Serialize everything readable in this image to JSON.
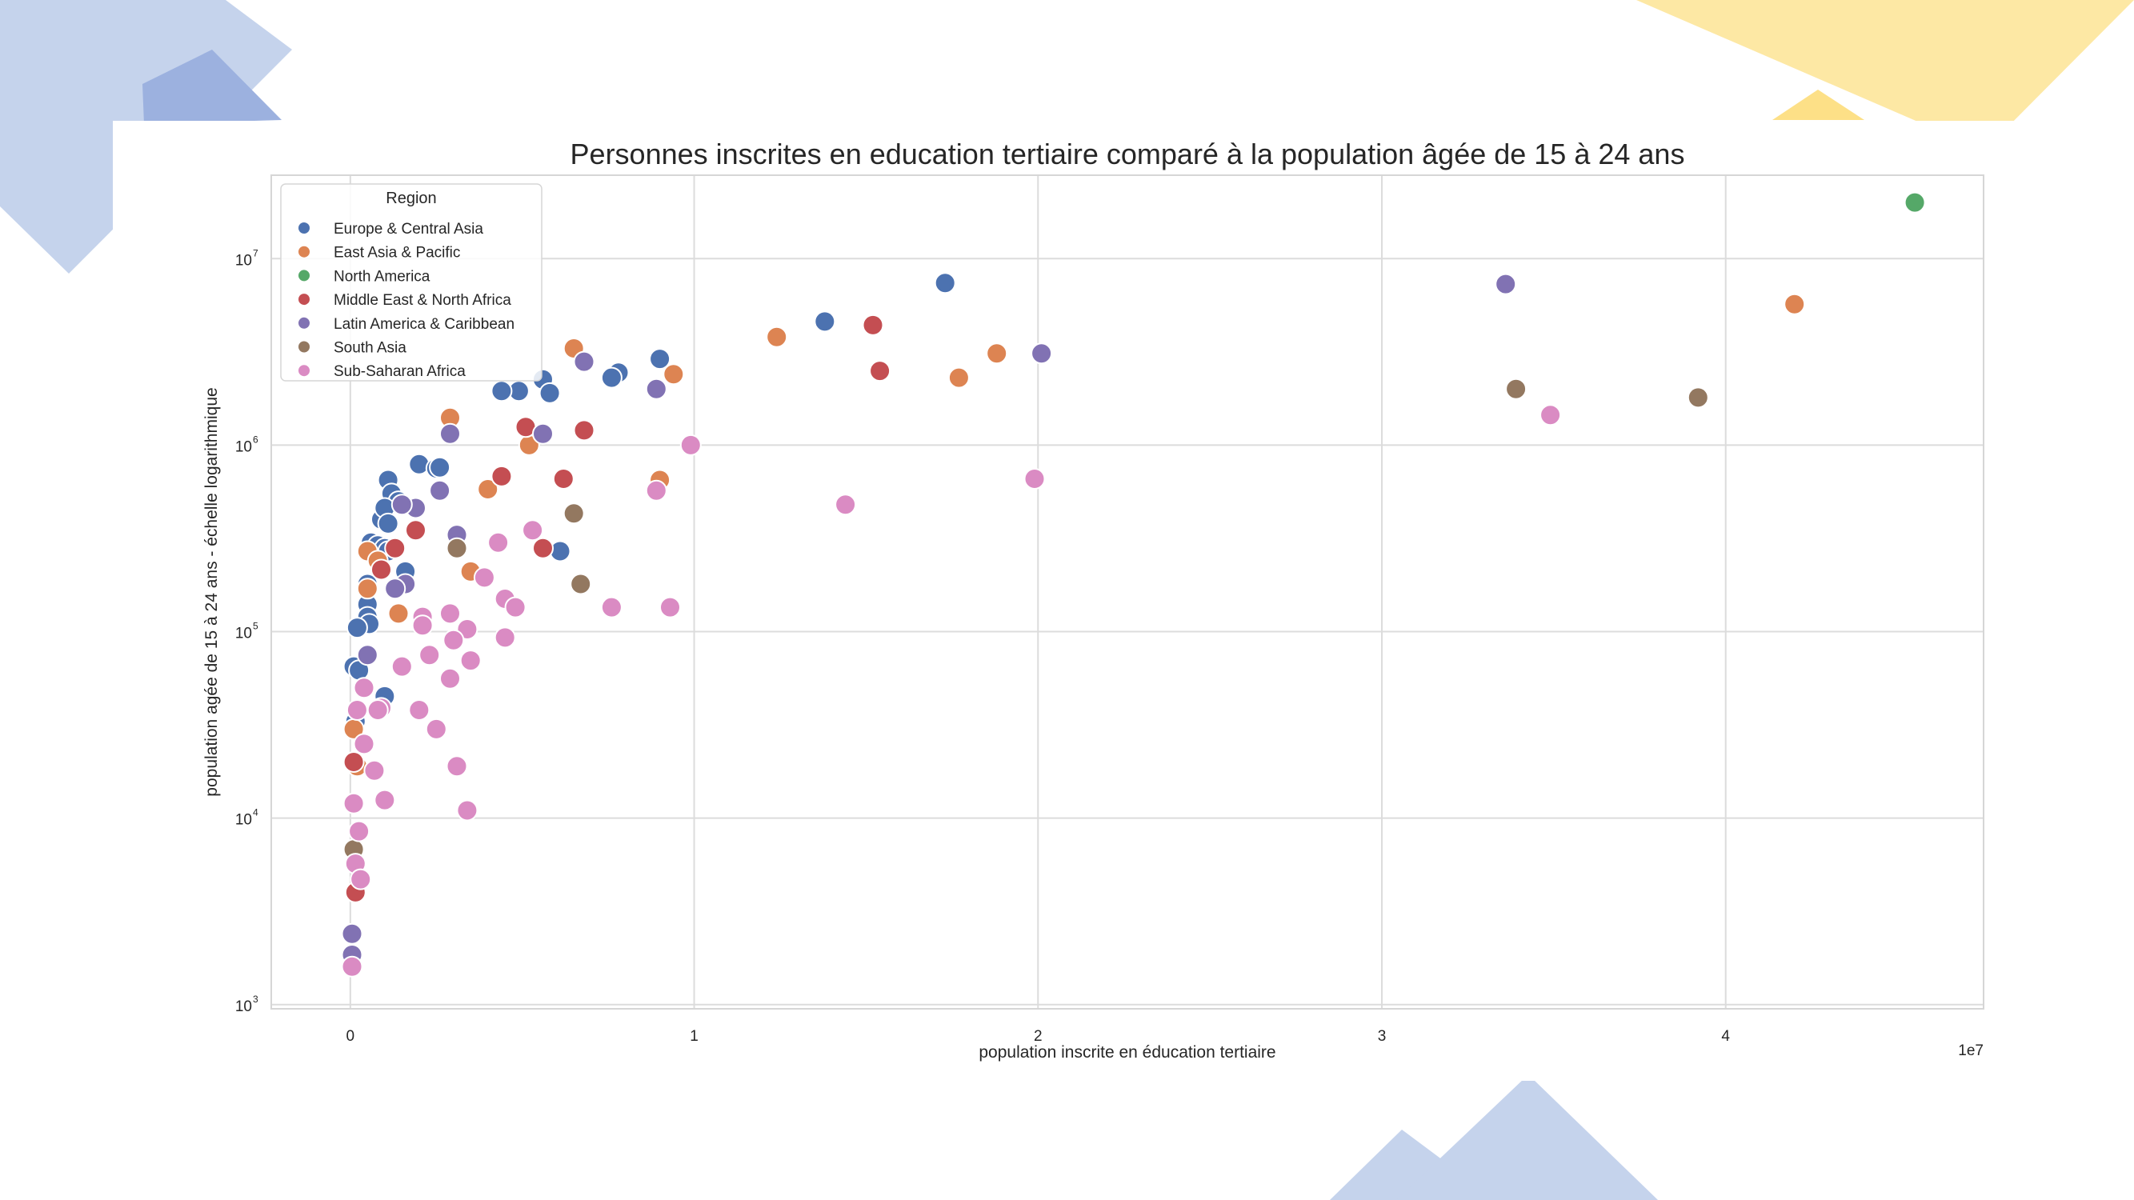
{
  "colors": {
    "deco_blue": "#c5d3ec",
    "deco_blue_dark": "#9cb1df",
    "deco_yellow": "#fde8a4",
    "deco_yellow_dark": "#fde087",
    "grid": "#dcdcdc",
    "axes_border": "#d6d6d6",
    "text": "#262626"
  },
  "chart_data": {
    "type": "scatter",
    "title": "Personnes inscrites en education tertiaire comparé à la population âgée de 15 à 24 ans",
    "xlabel": "population inscrite en éducation tertiaire",
    "ylabel": "population agée de 15 à 24 ans - échelle logarithmique",
    "x_offset_text": "1e7",
    "xlim": [
      -2300000,
      47500000
    ],
    "ylim": [
      950,
      28000000
    ],
    "yscale": "log",
    "x_ticks": [
      {
        "value": 0,
        "label": "0"
      },
      {
        "value": 10000000,
        "label": "1"
      },
      {
        "value": 20000000,
        "label": "2"
      },
      {
        "value": 30000000,
        "label": "3"
      },
      {
        "value": 40000000,
        "label": "4"
      }
    ],
    "y_ticks": [
      {
        "value": 1000,
        "base": "10",
        "exp": "3"
      },
      {
        "value": 10000,
        "base": "10",
        "exp": "4"
      },
      {
        "value": 100000,
        "base": "10",
        "exp": "5"
      },
      {
        "value": 1000000,
        "base": "10",
        "exp": "6"
      },
      {
        "value": 10000000,
        "base": "10",
        "exp": "7"
      }
    ],
    "grid": true,
    "legend": {
      "title": "Region",
      "placement": "top-left"
    },
    "series": [
      {
        "name": "Europe & Central Asia",
        "color": "#4c72b0",
        "points": [
          [
            17300000,
            7400000
          ],
          [
            13800000,
            4600000
          ],
          [
            9000000,
            2900000
          ],
          [
            7800000,
            2450000
          ],
          [
            7600000,
            2300000
          ],
          [
            5600000,
            2250000
          ],
          [
            4900000,
            1950000
          ],
          [
            4400000,
            1950000
          ],
          [
            5800000,
            1900000
          ],
          [
            2000000,
            790000
          ],
          [
            2500000,
            750000
          ],
          [
            2600000,
            760000
          ],
          [
            1100000,
            650000
          ],
          [
            1200000,
            550000
          ],
          [
            1400000,
            500000
          ],
          [
            900000,
            400000
          ],
          [
            1000000,
            460000
          ],
          [
            1100000,
            380000
          ],
          [
            600000,
            300000
          ],
          [
            800000,
            290000
          ],
          [
            1000000,
            280000
          ],
          [
            1100000,
            270000
          ],
          [
            6100000,
            270000
          ],
          [
            1600000,
            210000
          ],
          [
            500000,
            180000
          ],
          [
            500000,
            140000
          ],
          [
            500000,
            120000
          ],
          [
            550000,
            110000
          ],
          [
            200000,
            105000
          ],
          [
            100000,
            65000
          ],
          [
            250000,
            62000
          ],
          [
            1000000,
            45000
          ],
          [
            150000,
            33000
          ]
        ]
      },
      {
        "name": "East Asia & Pacific",
        "color": "#dd8452",
        "points": [
          [
            42000000,
            5700000
          ],
          [
            6500000,
            3300000
          ],
          [
            12400000,
            3800000
          ],
          [
            18800000,
            3100000
          ],
          [
            9400000,
            2400000
          ],
          [
            17700000,
            2300000
          ],
          [
            2900000,
            1400000
          ],
          [
            5200000,
            1000000
          ],
          [
            9000000,
            650000
          ],
          [
            4000000,
            580000
          ],
          [
            500000,
            270000
          ],
          [
            800000,
            240000
          ],
          [
            3500000,
            210000
          ],
          [
            500000,
            170000
          ],
          [
            1400000,
            125000
          ],
          [
            100000,
            30000
          ],
          [
            200000,
            19000
          ]
        ]
      },
      {
        "name": "North America",
        "color": "#55a868",
        "points": [
          [
            45500000,
            20000000
          ]
        ]
      },
      {
        "name": "Middle East & North Africa",
        "color": "#c44e52",
        "points": [
          [
            15200000,
            4400000
          ],
          [
            15400000,
            2500000
          ],
          [
            5100000,
            1250000
          ],
          [
            6800000,
            1200000
          ],
          [
            4400000,
            680000
          ],
          [
            6200000,
            660000
          ],
          [
            1900000,
            350000
          ],
          [
            5600000,
            280000
          ],
          [
            1300000,
            280000
          ],
          [
            900000,
            215000
          ],
          [
            100000,
            20000
          ],
          [
            150000,
            4000
          ]
        ]
      },
      {
        "name": "Latin America & Caribbean",
        "color": "#8172b3",
        "points": [
          [
            33600000,
            7300000
          ],
          [
            20100000,
            3100000
          ],
          [
            6800000,
            2800000
          ],
          [
            8900000,
            2000000
          ],
          [
            2900000,
            1150000
          ],
          [
            5600000,
            1150000
          ],
          [
            2600000,
            570000
          ],
          [
            1900000,
            460000
          ],
          [
            1500000,
            480000
          ],
          [
            3100000,
            330000
          ],
          [
            1600000,
            180000
          ],
          [
            1300000,
            170000
          ],
          [
            500000,
            75000
          ],
          [
            50000,
            2400
          ],
          [
            50000,
            1850
          ]
        ]
      },
      {
        "name": "South Asia",
        "color": "#937860",
        "points": [
          [
            33900000,
            2000000
          ],
          [
            39200000,
            1800000
          ],
          [
            6500000,
            430000
          ],
          [
            3100000,
            280000
          ],
          [
            6700000,
            180000
          ],
          [
            100000,
            6800
          ]
        ]
      },
      {
        "name": "Sub-Saharan Africa",
        "color": "#da8bc3",
        "points": [
          [
            34900000,
            1450000
          ],
          [
            9900000,
            1000000
          ],
          [
            19900000,
            660000
          ],
          [
            8900000,
            570000
          ],
          [
            14400000,
            480000
          ],
          [
            5300000,
            350000
          ],
          [
            4300000,
            300000
          ],
          [
            3900000,
            195000
          ],
          [
            4500000,
            150000
          ],
          [
            4800000,
            135000
          ],
          [
            7600000,
            135000
          ],
          [
            9300000,
            135000
          ],
          [
            2900000,
            125000
          ],
          [
            2100000,
            120000
          ],
          [
            2100000,
            108000
          ],
          [
            3400000,
            103000
          ],
          [
            4500000,
            93000
          ],
          [
            3000000,
            90000
          ],
          [
            2300000,
            75000
          ],
          [
            3500000,
            70000
          ],
          [
            1500000,
            65000
          ],
          [
            2900000,
            56000
          ],
          [
            400000,
            50000
          ],
          [
            900000,
            39000
          ],
          [
            800000,
            38000
          ],
          [
            200000,
            38000
          ],
          [
            2000000,
            38000
          ],
          [
            2500000,
            30000
          ],
          [
            400000,
            25000
          ],
          [
            700000,
            18000
          ],
          [
            3100000,
            19000
          ],
          [
            1000000,
            12500
          ],
          [
            100000,
            12000
          ],
          [
            3400000,
            11000
          ],
          [
            250000,
            8500
          ],
          [
            150000,
            5700
          ],
          [
            300000,
            4700
          ],
          [
            50000,
            1600
          ]
        ]
      }
    ]
  }
}
